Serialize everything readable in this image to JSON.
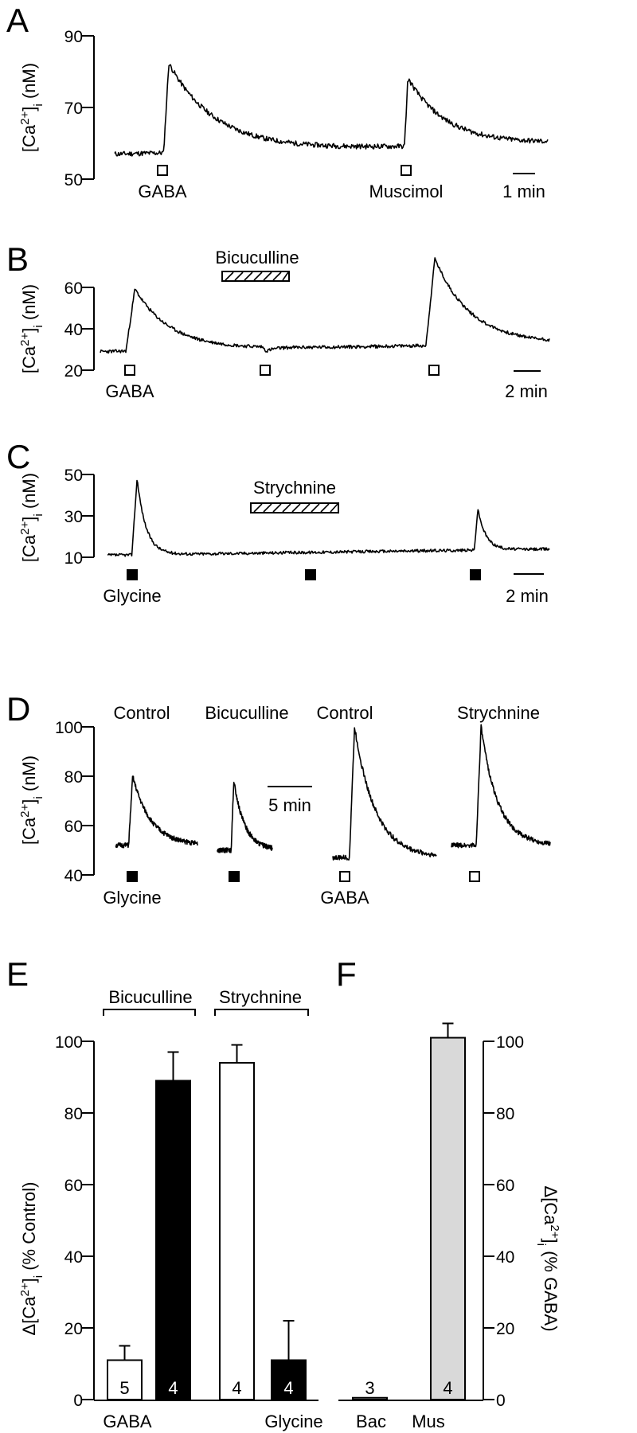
{
  "chart_data": [
    {
      "panel": "A",
      "type": "line",
      "ylabel_main": "[Ca",
      "ylabel_sup": "2+",
      "ylabel_close": "]",
      "ylabel_sub": "i",
      "ylabel_unit": " (nM)",
      "ylim": [
        50,
        90
      ],
      "yticks": [
        50,
        70,
        90
      ],
      "baseline": 57,
      "baseline2": 60,
      "peaks": [
        {
          "x_min": 1.1,
          "peak": 82,
          "decay_to": 60
        },
        {
          "x_min": 6.4,
          "peak": 78,
          "decay_to": 60
        }
      ],
      "xlim_min": [
        0,
        8.1
      ],
      "applications": [
        {
          "label": "GABA",
          "x_min": 1.05,
          "marker": "open"
        },
        {
          "label": "Muscimol",
          "x_min": 6.3,
          "marker": "open"
        }
      ],
      "scalebar": "1 min"
    },
    {
      "panel": "B",
      "type": "line",
      "ylabel_main": "[Ca",
      "ylabel_sup": "2+",
      "ylabel_close": "]",
      "ylabel_sub": "i",
      "ylabel_unit": " (nM)",
      "ylim": [
        20,
        60
      ],
      "yticks": [
        20,
        40,
        60
      ],
      "peaks": [
        {
          "x_min": 2,
          "peak": 59
        },
        {
          "x_min": 29,
          "peak": 73
        }
      ],
      "baseline": 29,
      "xlim_min": [
        0,
        37
      ],
      "applications": [
        {
          "label": "GABA",
          "x_min": 2,
          "marker": "open"
        },
        {
          "label": "",
          "x_min": 13.5,
          "marker": "open"
        },
        {
          "label": "",
          "x_min": 27.5,
          "marker": "open"
        }
      ],
      "antagonist": {
        "label": "Bicuculline",
        "start_min": 10,
        "end_min": 15.5
      },
      "scalebar": "2 min"
    },
    {
      "panel": "C",
      "type": "line",
      "ylabel_main": "[Ca",
      "ylabel_sup": "2+",
      "ylabel_close": "]",
      "ylabel_sub": "i",
      "ylabel_unit": " (nM)",
      "ylim": [
        10,
        50
      ],
      "yticks": [
        10,
        30,
        50
      ],
      "peaks": [
        {
          "x_min": 4,
          "peak": 48
        },
        {
          "x_min": 31,
          "peak": 32
        }
      ],
      "baseline": 10,
      "xlim_min": [
        0,
        37
      ],
      "applications": [
        {
          "label": "Glycine",
          "x_min": 4,
          "marker": "filled"
        },
        {
          "label": "",
          "x_min": 17.6,
          "marker": "filled"
        },
        {
          "label": "",
          "x_min": 31,
          "marker": "filled"
        }
      ],
      "antagonist": {
        "label": "Strychnine",
        "start_min": 13,
        "end_min": 21
      },
      "scalebar": "2 min"
    },
    {
      "panel": "D",
      "type": "line",
      "ylabel_main": "[Ca",
      "ylabel_sup": "2+",
      "ylabel_close": "]",
      "ylabel_sub": "i",
      "ylabel_unit": " (nM)",
      "ylim": [
        40,
        100
      ],
      "yticks": [
        40,
        60,
        80,
        100
      ],
      "traces": [
        {
          "title": "Control",
          "baseline": 52,
          "peak": 80,
          "agonist": "Glycine",
          "marker": "filled"
        },
        {
          "title": "Bicuculline",
          "baseline": 50,
          "peak": 78,
          "agonist": "",
          "marker": "filled"
        },
        {
          "title": "Control",
          "baseline": 47,
          "peak": 100,
          "agonist": "GABA",
          "marker": "open"
        },
        {
          "title": "Strychnine",
          "baseline": 52,
          "peak": 100,
          "agonist": "",
          "marker": "open"
        }
      ],
      "scalebar": "5 min"
    },
    {
      "panel": "E",
      "type": "bar",
      "ylabel_main": "Δ[Ca",
      "ylabel_sup": "2+",
      "ylabel_close": "]",
      "ylabel_sub": "i",
      "ylabel_unit": " (% Control)",
      "ylim": [
        0,
        100
      ],
      "yticks": [
        0,
        20,
        40,
        60,
        80,
        100
      ],
      "bars": [
        {
          "value": 11,
          "error": 4,
          "n": "5",
          "fill": "#ffffff"
        },
        {
          "value": 89,
          "error": 8,
          "n": "4",
          "fill": "#000000"
        },
        {
          "value": 94,
          "error": 5,
          "n": "4",
          "fill": "#ffffff"
        },
        {
          "value": 11,
          "error": 11,
          "n": "4",
          "fill": "#000000"
        }
      ],
      "group_labels": [
        "Bicuculline",
        "Strychnine"
      ],
      "x_labels": [
        "GABA",
        "Glycine"
      ]
    },
    {
      "panel": "F",
      "type": "bar",
      "ylabel_main": "Δ[Ca",
      "ylabel_sup": "2+",
      "ylabel_close": "]",
      "ylabel_sub": "i",
      "ylabel_unit": " (% GABA)",
      "ylim": [
        0,
        100
      ],
      "yticks": [
        0,
        20,
        40,
        60,
        80,
        100
      ],
      "bars": [
        {
          "category": "Bac",
          "value": 0.5,
          "error": 0,
          "n": "3",
          "fill": "#ffffff"
        },
        {
          "category": "Mus",
          "value": 101,
          "error": 4,
          "n": "4",
          "fill": "#d9d9d9"
        }
      ]
    }
  ]
}
